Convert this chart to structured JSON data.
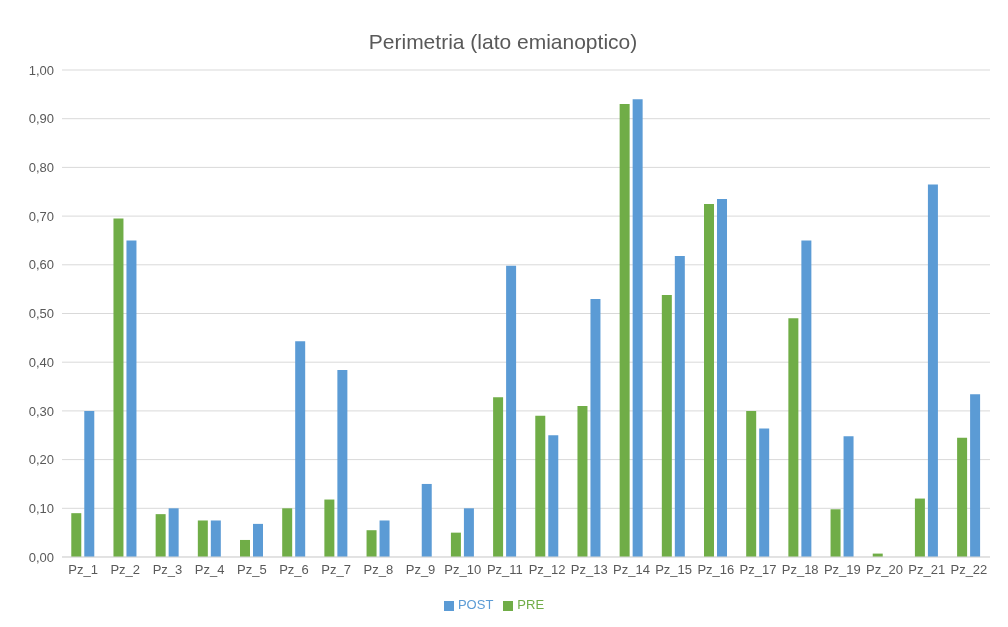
{
  "chart_data": {
    "type": "bar",
    "title": "Perimetria (lato emianoptico)",
    "categories": [
      "Pz_1",
      "Pz_2",
      "Pz_3",
      "Pz_4",
      "Pz_5",
      "Pz_6",
      "Pz_7",
      "Pz_8",
      "Pz_9",
      "Pz_10",
      "Pz_11",
      "Pz_12",
      "Pz_13",
      "Pz_14",
      "Pz_15",
      "Pz_16",
      "Pz_17",
      "Pz_18",
      "Pz_19",
      "Pz_20",
      "Pz_21",
      "Pz_22"
    ],
    "series": [
      {
        "name": "PRE",
        "color": "#70ad47",
        "values": [
          0.09,
          0.695,
          0.088,
          0.075,
          0.035,
          0.1,
          0.118,
          0.055,
          0,
          0.05,
          0.328,
          0.29,
          0.31,
          0.93,
          0.538,
          0.725,
          0.3,
          0.49,
          0.098,
          0.007,
          0.12,
          0.245
        ]
      },
      {
        "name": "POST",
        "color": "#5b9bd5",
        "values": [
          0.3,
          0.65,
          0.1,
          0.075,
          0.068,
          0.443,
          0.384,
          0.075,
          0.15,
          0.1,
          0.598,
          0.25,
          0.53,
          0.94,
          0.618,
          0.735,
          0.264,
          0.65,
          0.248,
          0,
          0.765,
          0.334
        ]
      }
    ],
    "ylim": [
      0,
      1
    ],
    "yticks": [
      {
        "value": 0,
        "label": "0,00"
      },
      {
        "value": 0.1,
        "label": "0,10"
      },
      {
        "value": 0.2,
        "label": "0,20"
      },
      {
        "value": 0.3,
        "label": "0,30"
      },
      {
        "value": 0.4,
        "label": "0,40"
      },
      {
        "value": 0.5,
        "label": "0,50"
      },
      {
        "value": 0.6,
        "label": "0,60"
      },
      {
        "value": 0.7,
        "label": "0,70"
      },
      {
        "value": 0.8,
        "label": "0,80"
      },
      {
        "value": 0.9,
        "label": "0,90"
      },
      {
        "value": 1,
        "label": "1,00"
      }
    ],
    "grid": "y",
    "legend": "bottom"
  }
}
